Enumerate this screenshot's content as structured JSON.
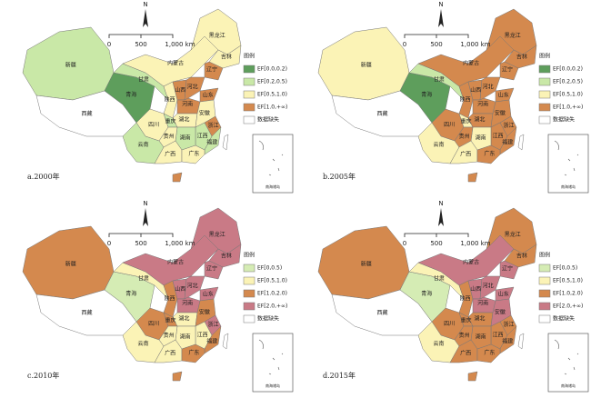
{
  "north": "N",
  "scale_ticks": [
    "0",
    "500",
    "1,000 km"
  ],
  "legend_title": "图例",
  "inset_label": "南海诸岛",
  "provinces": [
    "新疆",
    "西藏",
    "青海",
    "甘肃",
    "内蒙古",
    "黑龙江",
    "吉林",
    "辽宁",
    "陕西",
    "山西",
    "河北",
    "山东",
    "河南",
    "四川",
    "重庆",
    "湖北",
    "安徽",
    "浙江",
    "江西",
    "福建",
    "湖南",
    "贵州",
    "云南",
    "广西",
    "广东",
    null,
    null
  ],
  "panels": [
    {
      "caption": "a.2000年",
      "legend": [
        {
          "label": "EF[0.0,0.2)",
          "color": "#5e9e5c"
        },
        {
          "label": "EF[0.2,0.5)",
          "color": "#c9e8a7"
        },
        {
          "label": "EF[0.5,1.0)",
          "color": "#fbf3b6"
        },
        {
          "label": "EF[1.0,+∞)",
          "color": "#d4894e"
        },
        {
          "label": "数据缺失",
          "color": "#ffffff"
        }
      ],
      "colors": [
        "#c9e8a7",
        "#ffffff",
        "#5e9e5c",
        "#c9e8a7",
        "#fbf3b6",
        "#fbf3b6",
        "#fbf3b6",
        "#d4894e",
        "#fbf3b6",
        "#d4894e",
        "#d4894e",
        "#d4894e",
        "#d4894e",
        "#fbf3b6",
        "#c9e8a7",
        "#fbf3b6",
        "#fbf3b6",
        "#d4894e",
        "#c9e8a7",
        "#c9e8a7",
        "#c9e8a7",
        "#fbf3b6",
        "#c9e8a7",
        "#fbf3b6",
        "#fbf3b6",
        "#d4894e",
        "#ffffff"
      ]
    },
    {
      "caption": "b.2005年",
      "legend": [
        {
          "label": "EF[0.0,0.2)",
          "color": "#5e9e5c"
        },
        {
          "label": "EF[0.2,0.5)",
          "color": "#c9e8a7"
        },
        {
          "label": "EF[0.5,1.0)",
          "color": "#fbf3b6"
        },
        {
          "label": "EF[1.0,+∞)",
          "color": "#d4894e"
        },
        {
          "label": "数据缺失",
          "color": "#ffffff"
        }
      ],
      "colors": [
        "#fbf3b6",
        "#ffffff",
        "#5e9e5c",
        "#c9e8a7",
        "#d4894e",
        "#d4894e",
        "#d4894e",
        "#d4894e",
        "#d4894e",
        "#d4894e",
        "#d4894e",
        "#d4894e",
        "#d4894e",
        "#d4894e",
        "#fbf3b6",
        "#d4894e",
        "#d4894e",
        "#d4894e",
        "#d4894e",
        "#d4894e",
        "#fbf3b6",
        "#d4894e",
        "#fbf3b6",
        "#fbf3b6",
        "#d4894e",
        "#d4894e",
        "#ffffff"
      ]
    },
    {
      "caption": "c.2010年",
      "legend": [
        {
          "label": "EF[0,0.5)",
          "color": "#d5ecb4"
        },
        {
          "label": "EF[0.5,1.0)",
          "color": "#fbf3b6"
        },
        {
          "label": "EF[1.0,2.0)",
          "color": "#d4894e"
        },
        {
          "label": "EF[2.0,+∞)",
          "color": "#c97a86"
        },
        {
          "label": "数据缺失",
          "color": "#ffffff"
        }
      ],
      "colors": [
        "#d4894e",
        "#ffffff",
        "#d5ecb4",
        "#fbf3b6",
        "#c97a86",
        "#c97a86",
        "#c97a86",
        "#c97a86",
        "#d4894e",
        "#c97a86",
        "#c97a86",
        "#c97a86",
        "#c97a86",
        "#d4894e",
        "#d4894e",
        "#fbf3b6",
        "#d4894e",
        "#c97a86",
        "#fbf3b6",
        "#d4894e",
        "#fbf3b6",
        "#fbf3b6",
        "#fbf3b6",
        "#fbf3b6",
        "#d4894e",
        "#d4894e",
        "#ffffff"
      ]
    },
    {
      "caption": "d.2015年",
      "legend": [
        {
          "label": "EF[0,0.5)",
          "color": "#d5ecb4"
        },
        {
          "label": "EF[0.5,1.0)",
          "color": "#fbf3b6"
        },
        {
          "label": "EF[1.0,2.0)",
          "color": "#d4894e"
        },
        {
          "label": "EF[2.0,+∞)",
          "color": "#c97a86"
        },
        {
          "label": "数据缺失",
          "color": "#ffffff"
        }
      ],
      "colors": [
        "#d4894e",
        "#ffffff",
        "#d5ecb4",
        "#fbf3b6",
        "#c97a86",
        "#d4894e",
        "#d4894e",
        "#c97a86",
        "#d4894e",
        "#c97a86",
        "#c97a86",
        "#c97a86",
        "#c97a86",
        "#d4894e",
        "#d4894e",
        "#d4894e",
        "#c97a86",
        "#d4894e",
        "#d4894e",
        "#d4894e",
        "#d4894e",
        "#d4894e",
        "#fbf3b6",
        "#d4894e",
        "#d4894e",
        "#d4894e",
        "#ffffff"
      ]
    }
  ]
}
